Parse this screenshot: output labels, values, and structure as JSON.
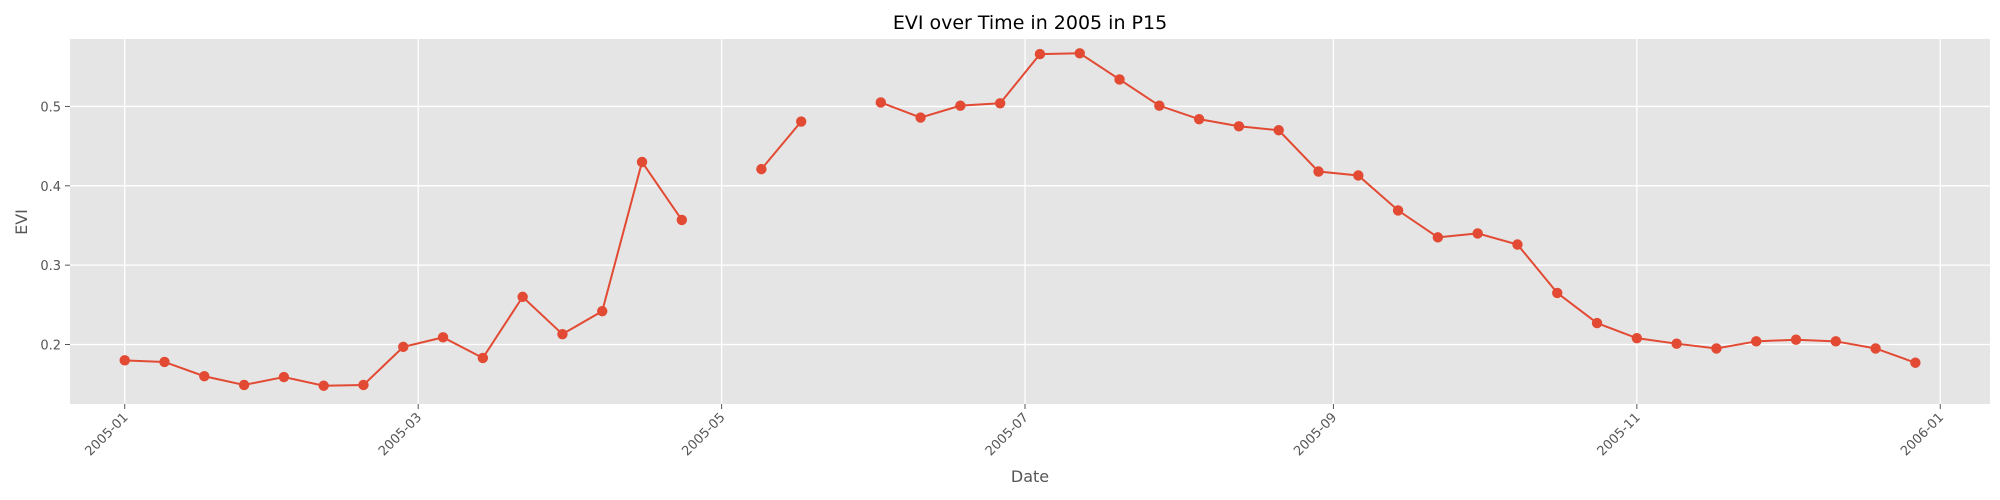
{
  "chart_data": {
    "type": "line",
    "title": "EVI over Time in 2005 in P15",
    "xlabel": "Date",
    "ylabel": "EVI",
    "x_ticks": [
      "2005-01",
      "2005-03",
      "2005-05",
      "2005-07",
      "2005-09",
      "2005-11",
      "2006-01"
    ],
    "y_ticks": [
      "0.2",
      "0.3",
      "0.4",
      "0.5"
    ],
    "xlim": [
      "2004-12-21",
      "2006-01-11"
    ],
    "ylim": [
      0.125,
      0.585
    ],
    "grid": true,
    "colors": {
      "line": "#E24A33",
      "marker": "#E24A33",
      "panel": "#E5E5E5",
      "grid": "#FFFFFF"
    },
    "series": [
      {
        "x": [
          "2005-01-01",
          "2005-01-09",
          "2005-01-17",
          "2005-01-25",
          "2005-02-02",
          "2005-02-10",
          "2005-02-18",
          "2005-02-26",
          "2005-03-06",
          "2005-03-14",
          "2005-03-22",
          "2005-03-30",
          "2005-04-07",
          "2005-04-15",
          "2005-04-23",
          "2005-05-01",
          "2005-05-09",
          "2005-05-17",
          "2005-05-25",
          "2005-06-02",
          "2005-06-10",
          "2005-06-18",
          "2005-06-26",
          "2005-07-04",
          "2005-07-12",
          "2005-07-20",
          "2005-07-28",
          "2005-08-05",
          "2005-08-13",
          "2005-08-21",
          "2005-08-29",
          "2005-09-06",
          "2005-09-14",
          "2005-09-22",
          "2005-09-30",
          "2005-10-08",
          "2005-10-16",
          "2005-10-24",
          "2005-11-01",
          "2005-11-09",
          "2005-11-17",
          "2005-11-25",
          "2005-12-03",
          "2005-12-11",
          "2005-12-19",
          "2005-12-27"
        ],
        "y": [
          0.18,
          0.178,
          0.16,
          0.149,
          0.159,
          0.148,
          0.149,
          0.197,
          0.209,
          0.183,
          0.26,
          0.213,
          0.242,
          0.43,
          0.357,
          null,
          0.421,
          0.481,
          null,
          0.505,
          0.486,
          0.501,
          0.504,
          0.566,
          0.567,
          0.534,
          0.501,
          0.484,
          0.475,
          0.47,
          0.418,
          0.413,
          0.369,
          0.335,
          0.34,
          0.326,
          0.265,
          0.227,
          0.208,
          0.201,
          0.195,
          0.204,
          0.206,
          0.204,
          0.195,
          0.177
        ]
      }
    ]
  }
}
